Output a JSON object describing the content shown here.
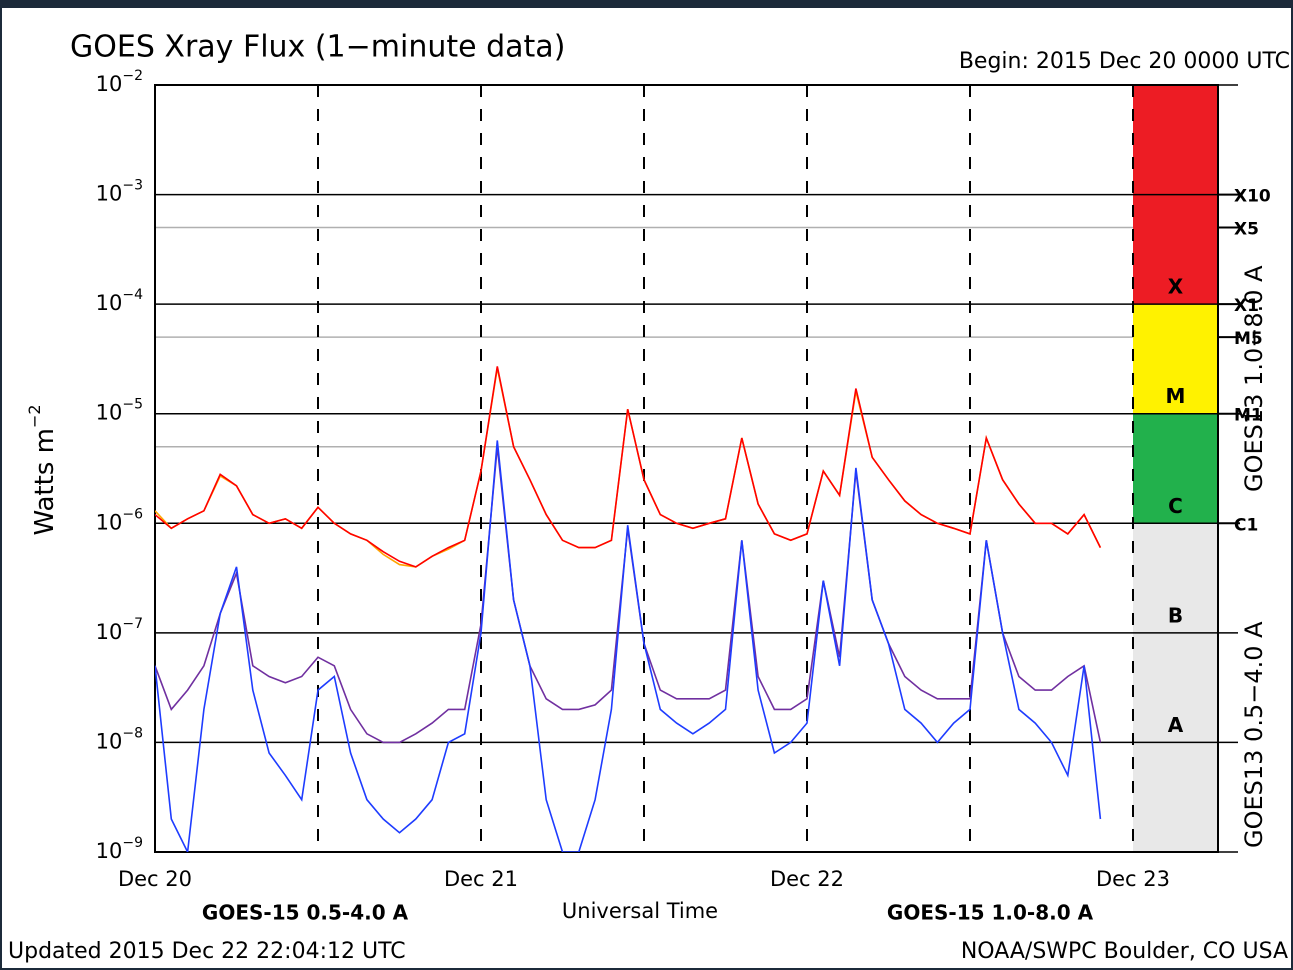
{
  "chart_data": {
    "type": "line",
    "title": "GOES Xray Flux (1−minute data)",
    "subtitle": "Begin:  2015 Dec 20 0000 UTC",
    "x_label": "Universal Time",
    "y_label": "Watts m",
    "y_label_exponent": "−2",
    "footer_left": "Updated 2015 Dec 22 22:04:12 UTC",
    "footer_right": "NOAA/SWPC Boulder, CO USA",
    "log_scale": true,
    "xlim": [
      0,
      3
    ],
    "xticks": [
      {
        "value": 0,
        "label": "Dec 20"
      },
      {
        "value": 1,
        "label": "Dec 21"
      },
      {
        "value": 2,
        "label": "Dec 22"
      },
      {
        "value": 3,
        "label": "Dec 23"
      }
    ],
    "x_minor_ticks": [
      0.5,
      1.5,
      2.5
    ],
    "ylim": [
      1e-09,
      0.01
    ],
    "yticks": [
      {
        "value": 1e-09,
        "label": "10",
        "exponent": "−9"
      },
      {
        "value": 1e-08,
        "label": "10",
        "exponent": "−8"
      },
      {
        "value": 1e-07,
        "label": "10",
        "exponent": "−7"
      },
      {
        "value": 1e-06,
        "label": "10",
        "exponent": "−6"
      },
      {
        "value": 1e-05,
        "label": "10",
        "exponent": "−5"
      },
      {
        "value": 0.0001,
        "label": "10",
        "exponent": "−4"
      },
      {
        "value": 0.001,
        "label": "10",
        "exponent": "−3"
      },
      {
        "value": 0.01,
        "label": "10",
        "exponent": "−2"
      }
    ],
    "ref_lines": [
      0.0005,
      5e-05,
      5e-06
    ],
    "flare_levels": [
      {
        "value": 0.001,
        "label": "X10"
      },
      {
        "value": 0.0005,
        "label": "X5"
      },
      {
        "value": 0.0001,
        "label": "X1"
      },
      {
        "value": 5e-05,
        "label": "M5"
      },
      {
        "value": 1e-05,
        "label": "M1"
      },
      {
        "value": 1e-06,
        "label": "C1"
      }
    ],
    "flare_classes": [
      {
        "label": "X",
        "range": [
          0.0001,
          0.01
        ],
        "color": "#ed1c24",
        "text_color": "#ffffff"
      },
      {
        "label": "M",
        "range": [
          1e-05,
          0.0001
        ],
        "color": "#fff200",
        "text_color": "#000000"
      },
      {
        "label": "C",
        "range": [
          1e-06,
          1e-05
        ],
        "color": "#22b14c",
        "text_color": "#ffffff"
      },
      {
        "label": "B",
        "range": [
          1e-07,
          1e-06
        ],
        "color": "#e8e8e8",
        "text_color": "#000000"
      },
      {
        "label": "A",
        "range": [
          1e-08,
          1e-07
        ],
        "color": "#e8e8e8",
        "text_color": "#000000"
      }
    ],
    "x": [
      0,
      0.05,
      0.1,
      0.15,
      0.2,
      0.25,
      0.3,
      0.35,
      0.4,
      0.45,
      0.5,
      0.55,
      0.6,
      0.65,
      0.7,
      0.75,
      0.8,
      0.85,
      0.9,
      0.95,
      1,
      1.05,
      1.1,
      1.15,
      1.2,
      1.25,
      1.3,
      1.35,
      1.4,
      1.45,
      1.5,
      1.55,
      1.6,
      1.65,
      1.7,
      1.75,
      1.8,
      1.85,
      1.9,
      1.95,
      2,
      2.05,
      2.1,
      2.15,
      2.2,
      2.25,
      2.3,
      2.35,
      2.4,
      2.45,
      2.5,
      2.55,
      2.6,
      2.65,
      2.7,
      2.75,
      2.8,
      2.85,
      2.9
    ],
    "series": [
      {
        "name": "GOES13 1.0−8.0 A",
        "color": "#ffa500",
        "legend_position": "right-upper",
        "values": [
          1.3e-06,
          9e-07,
          1.1e-06,
          1.3e-06,
          2.7e-06,
          2.2e-06,
          1.2e-06,
          1e-06,
          1.1e-06,
          9e-07,
          1.4e-06,
          1e-06,
          8e-07,
          7e-07,
          5.2e-07,
          4.2e-07,
          4e-07,
          5e-07,
          5.8e-07,
          7e-07,
          3e-06,
          2.6e-05,
          5e-06,
          2.5e-06,
          1.2e-06,
          7e-07,
          6e-07,
          6e-07,
          7e-07,
          1.1e-05,
          2.5e-06,
          1.2e-06,
          1e-06,
          9e-07,
          1e-06,
          1.1e-06,
          6e-06,
          1.5e-06,
          8e-07,
          7e-07,
          8e-07,
          3e-06,
          1.8e-06,
          1.6e-05,
          4e-06,
          2.5e-06,
          1.6e-06,
          1.2e-06,
          1e-06,
          9e-07,
          8e-07,
          6e-06,
          2.5e-06,
          1.5e-06,
          1e-06,
          1e-06,
          8e-07,
          1.2e-06,
          6e-07
        ]
      },
      {
        "name": "GOES-15 1.0-8.0 A",
        "color": "#ff0000",
        "legend_position": "bottom-right",
        "values": [
          1.2e-06,
          9e-07,
          1.1e-06,
          1.3e-06,
          2.8e-06,
          2.2e-06,
          1.2e-06,
          1e-06,
          1.1e-06,
          9e-07,
          1.4e-06,
          1e-06,
          8e-07,
          7e-07,
          5.5e-07,
          4.5e-07,
          4e-07,
          5e-07,
          6e-07,
          7e-07,
          3e-06,
          2.7e-05,
          5e-06,
          2.5e-06,
          1.2e-06,
          7e-07,
          6e-07,
          6e-07,
          7e-07,
          1.1e-05,
          2.5e-06,
          1.2e-06,
          1e-06,
          9e-07,
          1e-06,
          1.1e-06,
          6e-06,
          1.5e-06,
          8e-07,
          7e-07,
          8e-07,
          3e-06,
          1.8e-06,
          1.7e-05,
          4e-06,
          2.5e-06,
          1.6e-06,
          1.2e-06,
          1e-06,
          9e-07,
          8e-07,
          6e-06,
          2.5e-06,
          1.5e-06,
          1e-06,
          1e-06,
          8e-07,
          1.2e-06,
          6e-07
        ]
      },
      {
        "name": "GOES13 0.5−4.0 A",
        "color": "#7030a0",
        "legend_position": "right-lower",
        "values": [
          5e-08,
          2e-08,
          3e-08,
          5e-08,
          1.5e-07,
          3.5e-07,
          5e-08,
          4e-08,
          3.5e-08,
          4e-08,
          6e-08,
          5e-08,
          2e-08,
          1.2e-08,
          1e-08,
          1e-08,
          1.2e-08,
          1.5e-08,
          2e-08,
          2e-08,
          1.2e-07,
          5e-06,
          2e-07,
          5e-08,
          2.5e-08,
          2e-08,
          2e-08,
          2.2e-08,
          3e-08,
          9e-07,
          8e-08,
          3e-08,
          2.5e-08,
          2.5e-08,
          2.5e-08,
          3e-08,
          7e-07,
          4e-08,
          2e-08,
          2e-08,
          2.5e-08,
          3e-07,
          6e-08,
          3e-06,
          2e-07,
          8e-08,
          4e-08,
          3e-08,
          2.5e-08,
          2.5e-08,
          2.5e-08,
          7e-07,
          1e-07,
          4e-08,
          3e-08,
          3e-08,
          4e-08,
          5e-08,
          1e-08
        ]
      },
      {
        "name": "GOES-15 0.5-4.0 A",
        "color": "#1e3cff",
        "legend_position": "bottom-left",
        "values": [
          5e-08,
          2e-09,
          1e-09,
          2e-08,
          1.5e-07,
          4e-07,
          3e-08,
          8e-09,
          5e-09,
          3e-09,
          3e-08,
          4e-08,
          8e-09,
          3e-09,
          2e-09,
          1.5e-09,
          2e-09,
          3e-09,
          1e-08,
          1.2e-08,
          1e-07,
          5.7e-06,
          2e-07,
          5e-08,
          3e-09,
          1e-09,
          1e-09,
          3e-09,
          2e-08,
          9.6e-07,
          8e-08,
          2e-08,
          1.5e-08,
          1.2e-08,
          1.5e-08,
          2e-08,
          7e-07,
          3e-08,
          8e-09,
          1e-08,
          1.5e-08,
          3e-07,
          5e-08,
          3.2e-06,
          2e-07,
          8e-08,
          2e-08,
          1.5e-08,
          1e-08,
          1.5e-08,
          2e-08,
          7e-07,
          1e-07,
          2e-08,
          1.5e-08,
          1e-08,
          5e-09,
          5e-08,
          2e-09
        ]
      }
    ]
  }
}
